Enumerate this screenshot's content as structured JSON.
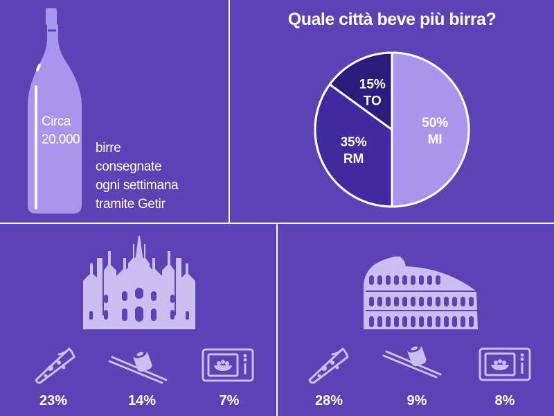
{
  "colors": {
    "background": "#5b43b5",
    "light_purple": "#a796ec",
    "mid_purple": "#3f2aa0",
    "dark_purple": "#2b1c7c",
    "divider": "#ffffff"
  },
  "bottle_stat": {
    "value_line1": "Circa",
    "value_line2": "20.000",
    "description": [
      "birre",
      "consegnate",
      "ogni settimana",
      "tramite Getir"
    ]
  },
  "chart_data": {
    "type": "pie",
    "title": "Quale città beve più birra?",
    "slices": [
      {
        "label": "MI",
        "value": 50,
        "display": "50%",
        "color": "#a796ec"
      },
      {
        "label": "RM",
        "value": 35,
        "display": "35%",
        "color": "#3f2aa0"
      },
      {
        "label": "TO",
        "value": 15,
        "display": "15%",
        "color": "#2b1c7c"
      }
    ]
  },
  "milano": {
    "landmark_icon": "duomo-icon",
    "stats": [
      {
        "icon": "pizza-icon",
        "value": "23%"
      },
      {
        "icon": "sushi-icon",
        "value": "14%"
      },
      {
        "icon": "microwave-icon",
        "value": "7%"
      }
    ]
  },
  "roma": {
    "landmark_icon": "colosseum-icon",
    "stats": [
      {
        "icon": "pizza-icon",
        "value": "28%"
      },
      {
        "icon": "sushi-icon",
        "value": "9%"
      },
      {
        "icon": "microwave-icon",
        "value": "8%"
      }
    ]
  }
}
